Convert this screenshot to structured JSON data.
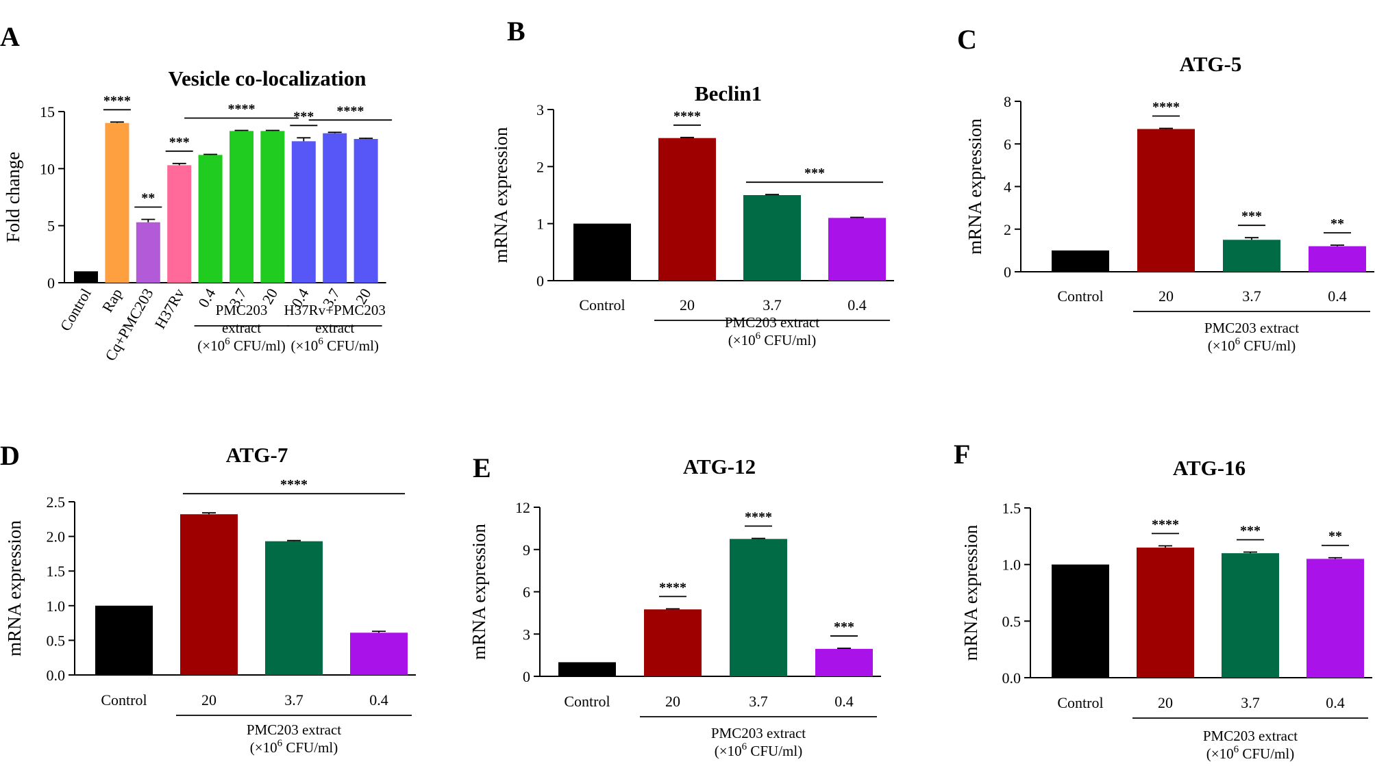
{
  "chart_data": [
    {
      "panel": "A",
      "type": "bar",
      "title": "Vesicle co-localization",
      "ylabel": "Fold change",
      "ylim": [
        0,
        15
      ],
      "yticks": [
        "0",
        "5",
        "10",
        "15"
      ],
      "categories": [
        "Control",
        "Rap",
        "Cq+PMC203",
        "H37Rv",
        "0.4",
        "3.7",
        "20",
        "0.4",
        "3.7",
        "20"
      ],
      "values": [
        1.0,
        14.0,
        5.3,
        10.3,
        11.2,
        13.3,
        13.3,
        12.4,
        13.1,
        12.6
      ],
      "errors": [
        0.0,
        0.08,
        0.25,
        0.15,
        0.05,
        0.05,
        0.05,
        0.3,
        0.08,
        0.06
      ],
      "colors": [
        "#000000",
        "#FFA040",
        "#B35AD9",
        "#FF6A9A",
        "#1FCC1F",
        "#1FCC1F",
        "#1FCC1F",
        "#5757F7",
        "#5757F7",
        "#5757F7"
      ],
      "significance": [
        {
          "label": "****",
          "from": 1,
          "to": 1
        },
        {
          "label": "**",
          "from": 2,
          "to": 2
        },
        {
          "label": "***",
          "from": 3,
          "to": 3
        },
        {
          "label": "****",
          "from": 4,
          "to": 6
        },
        {
          "label": "***",
          "from": 7,
          "to": 7
        },
        {
          "label": "****",
          "from": 8,
          "to": 9
        }
      ],
      "groups": [
        {
          "from": 4,
          "to": 6,
          "lines": [
            "PMC203",
            "extract",
            "(×10",
            "6",
            " CFU/ml)"
          ]
        },
        {
          "from": 7,
          "to": 9,
          "lines": [
            "H37Rv+PMC203",
            "extract",
            "(×10",
            "6",
            " CFU/ml)"
          ]
        }
      ]
    },
    {
      "panel": "B",
      "type": "bar",
      "title": "Beclin1",
      "ylabel": "mRNA expression",
      "ylim": [
        0,
        3
      ],
      "yticks": [
        "0",
        "1",
        "2",
        "3"
      ],
      "categories": [
        "Control",
        "20",
        "3.7",
        "0.4"
      ],
      "values": [
        1.0,
        2.5,
        1.5,
        1.1
      ],
      "errors": [
        0.0,
        0.01,
        0.01,
        0.01
      ],
      "colors": [
        "#000000",
        "#9E0000",
        "#006B45",
        "#A912E8"
      ],
      "significance": [
        {
          "label": "****",
          "from": 1,
          "to": 1
        },
        {
          "label": "***",
          "from": 2,
          "to": 3
        }
      ],
      "groups": [
        {
          "from": 1,
          "to": 3,
          "lines": [
            "PMC203 extract",
            "(×10",
            "6",
            " CFU/ml)"
          ]
        }
      ]
    },
    {
      "panel": "C",
      "type": "bar",
      "title": "ATG-5",
      "ylabel": "mRNA expression",
      "ylim": [
        0,
        8
      ],
      "yticks": [
        "0",
        "2",
        "4",
        "6",
        "8"
      ],
      "categories": [
        "Control",
        "20",
        "3.7",
        "0.4"
      ],
      "values": [
        1.0,
        6.7,
        1.5,
        1.2
      ],
      "errors": [
        0.0,
        0.03,
        0.1,
        0.05
      ],
      "colors": [
        "#000000",
        "#9E0000",
        "#006B45",
        "#A912E8"
      ],
      "significance": [
        {
          "label": "****",
          "from": 1,
          "to": 1
        },
        {
          "label": "***",
          "from": 2,
          "to": 2
        },
        {
          "label": "**",
          "from": 3,
          "to": 3
        }
      ],
      "groups": [
        {
          "from": 1,
          "to": 3,
          "lines": [
            "PMC203 extract",
            "(×10",
            "6",
            " CFU/ml)"
          ]
        }
      ]
    },
    {
      "panel": "D",
      "type": "bar",
      "title": "ATG-7",
      "ylabel": "mRNA expression",
      "ylim": [
        0,
        2.5
      ],
      "yticks": [
        "0.0",
        "0.5",
        "1.0",
        "1.5",
        "2.0",
        "2.5"
      ],
      "categories": [
        "Control",
        "20",
        "3.7",
        "0.4"
      ],
      "values": [
        1.0,
        2.32,
        1.93,
        0.61
      ],
      "errors": [
        0.0,
        0.02,
        0.01,
        0.02
      ],
      "colors": [
        "#000000",
        "#9E0000",
        "#006B45",
        "#A912E8"
      ],
      "significance": [
        {
          "label": "****",
          "from": 1,
          "to": 3
        }
      ],
      "groups": [
        {
          "from": 1,
          "to": 3,
          "lines": [
            "PMC203 extract",
            "(×10",
            "6",
            " CFU/ml)"
          ]
        }
      ]
    },
    {
      "panel": "E",
      "type": "bar",
      "title": "ATG-12",
      "ylabel": "mRNA expression",
      "ylim": [
        0,
        12
      ],
      "yticks": [
        "0",
        "3",
        "6",
        "9",
        "12"
      ],
      "categories": [
        "Control",
        "20",
        "3.7",
        "0.4"
      ],
      "values": [
        1.0,
        4.75,
        9.75,
        1.95
      ],
      "errors": [
        0.0,
        0.04,
        0.04,
        0.04
      ],
      "colors": [
        "#000000",
        "#9E0000",
        "#006B45",
        "#A912E8"
      ],
      "significance": [
        {
          "label": "****",
          "from": 1,
          "to": 1
        },
        {
          "label": "****",
          "from": 2,
          "to": 2
        },
        {
          "label": "***",
          "from": 3,
          "to": 3
        }
      ],
      "groups": [
        {
          "from": 1,
          "to": 3,
          "lines": [
            "PMC203 extract",
            "(×10",
            "6",
            " CFU/ml)"
          ]
        }
      ]
    },
    {
      "panel": "F",
      "type": "bar",
      "title": "ATG-16",
      "ylabel": "mRNA expression",
      "ylim": [
        0,
        1.5
      ],
      "yticks": [
        "0.0",
        "0.5",
        "1.0",
        "1.5"
      ],
      "categories": [
        "Control",
        "20",
        "3.7",
        "0.4"
      ],
      "values": [
        1.0,
        1.15,
        1.1,
        1.05
      ],
      "errors": [
        0.0,
        0.015,
        0.01,
        0.01
      ],
      "colors": [
        "#000000",
        "#9E0000",
        "#006B45",
        "#A912E8"
      ],
      "significance": [
        {
          "label": "****",
          "from": 1,
          "to": 1
        },
        {
          "label": "***",
          "from": 2,
          "to": 2
        },
        {
          "label": "**",
          "from": 3,
          "to": 3
        }
      ],
      "groups": [
        {
          "from": 1,
          "to": 3,
          "lines": [
            "PMC203 extract",
            "(×10",
            "6",
            " CFU/ml)"
          ]
        }
      ]
    }
  ]
}
